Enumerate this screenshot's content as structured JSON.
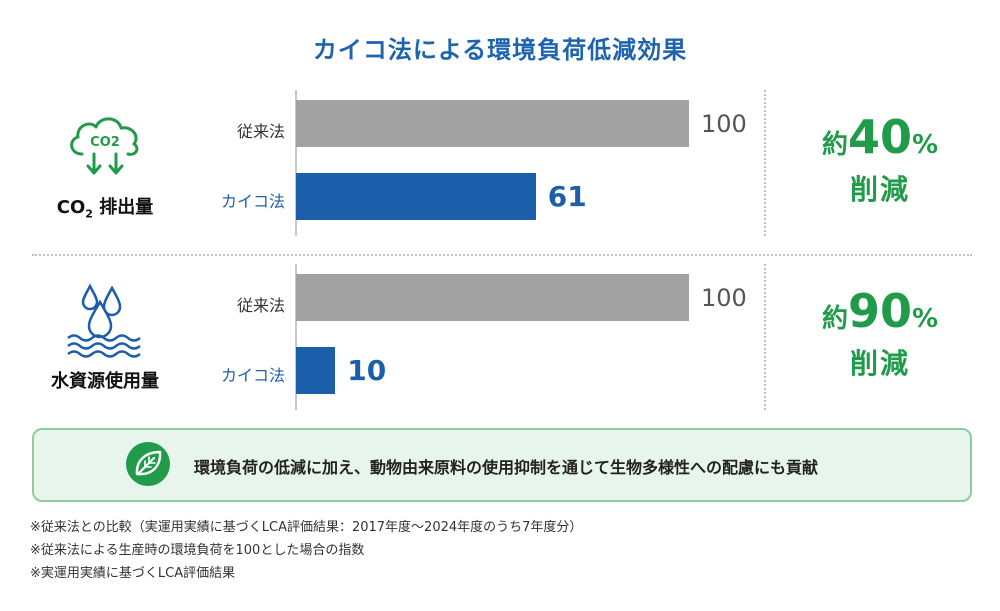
{
  "title": "カイコ法による環境負荷低減効果",
  "colors": {
    "conventional": "#a2a2a2",
    "kaiko": "#1b5eaa",
    "accent_green": "#1f9b4a",
    "title_blue": "#1e63b0"
  },
  "panels": {
    "co2": {
      "icon": "co2-cloud-icon",
      "icon_text": "CO2",
      "label_main": "CO",
      "label_sub": "2",
      "label_rest": " 排出量",
      "approx": "約",
      "reduction_pct": "40",
      "reduction_unit": "%",
      "reduction_word": "削減"
    },
    "water": {
      "icon": "water-drops-icon",
      "label": "水資源使用量",
      "approx": "約",
      "reduction_pct": "90",
      "reduction_unit": "%",
      "reduction_word": "削減"
    }
  },
  "chart_data": [
    {
      "type": "bar",
      "orientation": "horizontal",
      "categories": [
        "従来法",
        "カイコ法"
      ],
      "values": [
        100,
        61
      ],
      "value_labels": [
        "100",
        "61"
      ],
      "xlim": [
        0,
        100
      ]
    },
    {
      "type": "bar",
      "orientation": "horizontal",
      "categories": [
        "従来法",
        "カイコ法"
      ],
      "values": [
        100,
        10
      ],
      "value_labels": [
        "100",
        "10"
      ],
      "xlim": [
        0,
        100
      ]
    }
  ],
  "banner": {
    "icon": "leaf-icon",
    "text": "環境負荷の低減に加え、動物由来原料の使用抑制を通じて生物多様性への配慮にも貢献"
  },
  "notes": [
    "※従来法との比較（実運用実績に基づくLCA評価結果：2017年度〜2024年度のうち7年度分）",
    "※従来法による生産時の環境負荷を100とした場合の指数",
    "※実運用実績に基づくLCA評価結果"
  ]
}
